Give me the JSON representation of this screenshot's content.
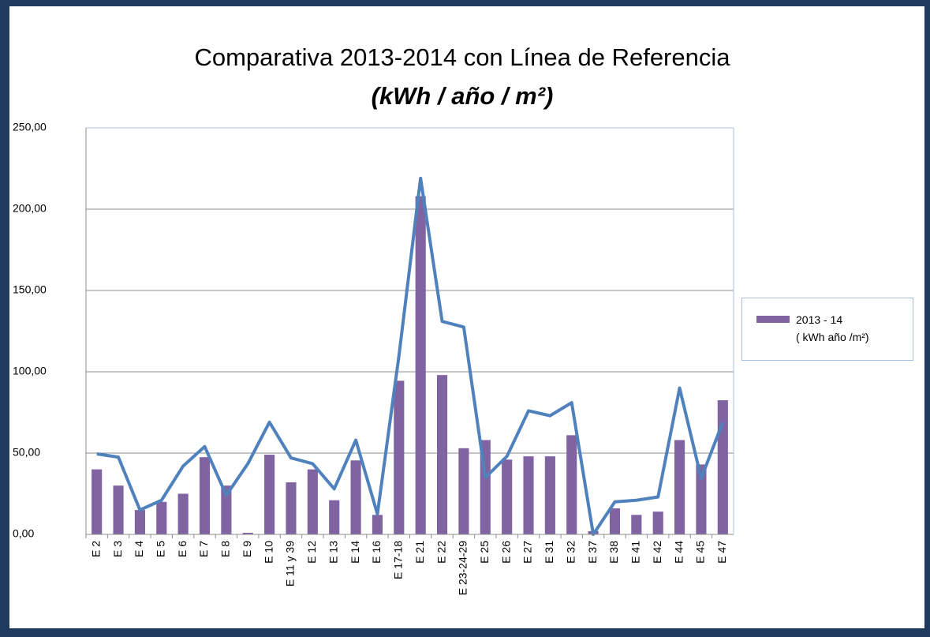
{
  "chart_data": {
    "type": "bar_line",
    "title": "Comparativa 2013-2014  con Línea de Referencia",
    "subtitle": "(kWh / año / m²)",
    "categories": [
      "E 2",
      "E 3",
      "E 4",
      "E 5",
      "E 6",
      "E 7",
      "E 8",
      "E 9",
      "E 10",
      "E 11 y 39",
      "E 12",
      "E 13",
      "E 14",
      "E 16",
      "E 17-18",
      "E 21",
      "E 22",
      "E 23-24-29",
      "E 25",
      "E 26",
      "E 27",
      "E 31",
      "E 32",
      "E 37",
      "E 38",
      "E 41",
      "E 42",
      "E 44",
      "E 45",
      "E 47"
    ],
    "series": [
      {
        "name": "2013 - 14\n( kWh año /m²)",
        "type": "bar",
        "color": "#8064a2",
        "values": [
          40,
          30,
          15,
          20,
          25,
          47.5,
          30,
          1,
          49,
          32,
          40,
          21,
          45.5,
          12,
          94.5,
          208,
          98,
          53,
          58,
          46,
          48,
          48,
          61,
          2,
          16,
          12,
          14,
          58,
          43,
          82.5
        ]
      },
      {
        "type": "line",
        "color": "#4f81bd",
        "values": [
          49.5,
          47.5,
          15,
          21,
          42,
          54,
          24,
          43.5,
          69,
          47,
          43.5,
          28,
          58,
          12.5,
          110,
          219,
          131,
          127.5,
          35,
          48,
          76,
          73,
          81,
          0,
          20,
          21,
          23,
          90,
          34.5,
          69
        ]
      }
    ],
    "ylim": [
      0,
      250
    ],
    "yticks": [
      {
        "value": 0,
        "label": "0,00"
      },
      {
        "value": 50,
        "label": "50,00"
      },
      {
        "value": 100,
        "label": "100,00"
      },
      {
        "value": 150,
        "label": "150,00"
      },
      {
        "value": 200,
        "label": "200,00"
      },
      {
        "value": 250,
        "label": "250,00"
      }
    ],
    "grid": true,
    "legend": "right"
  }
}
